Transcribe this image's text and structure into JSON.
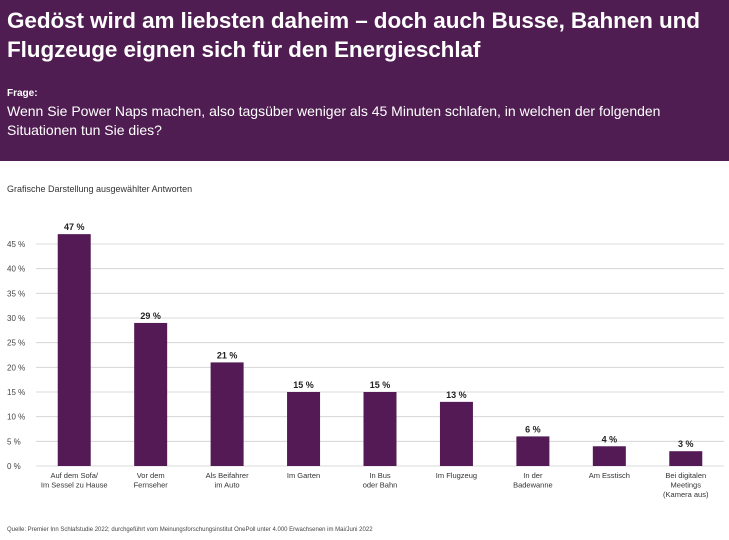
{
  "header": {
    "title": "Gedöst wird am liebsten daheim – doch auch Busse, Bahnen und Flugzeuge eignen sich für den Energieschlaf",
    "question_label": "Frage:",
    "question_text": "Wenn Sie Power Naps machen, also tagsüber weniger als 45 Minuten schlafen, in welchen der folgenden Situationen tun Sie dies?"
  },
  "subtitle": "Grafische Darstellung ausgewählter Antworten",
  "source": "Quelle: Premier Inn Schlafstudie 2022; durchgeführt vom Meinungsforschungsinstitut OnePoll unter 4.000 Erwachsenen im Mai/Juni 2022",
  "colors": {
    "header_bg": "#4f1d51",
    "bar": "#541a56",
    "grid": "#cfcfcf"
  },
  "chart_data": {
    "type": "bar",
    "categories": [
      [
        "Auf dem Sofa/",
        "Im Sessel zu Hause"
      ],
      [
        "Vor dem",
        "Fernseher"
      ],
      [
        "Als Beifahrer",
        "im Auto"
      ],
      [
        "Im Garten"
      ],
      [
        "In Bus",
        "oder Bahn"
      ],
      [
        "Im Flugzeug"
      ],
      [
        "In der",
        "Badewanne"
      ],
      [
        "Am Esstisch"
      ],
      [
        "Bei digitalen",
        "Meetings",
        "(Kamera aus)"
      ]
    ],
    "values": [
      47,
      29,
      21,
      15,
      15,
      13,
      6,
      4,
      3
    ],
    "value_labels": [
      "47 %",
      "29 %",
      "21 %",
      "15 %",
      "15 %",
      "13 %",
      "6 %",
      "4 %",
      "3 %"
    ],
    "yticks": [
      "0 %",
      "5 %",
      "10 %",
      "15 %",
      "20 %",
      "25 %",
      "30 %",
      "35 %",
      "40 %",
      "45 %"
    ],
    "ylim": [
      0,
      45
    ],
    "grid": true
  }
}
